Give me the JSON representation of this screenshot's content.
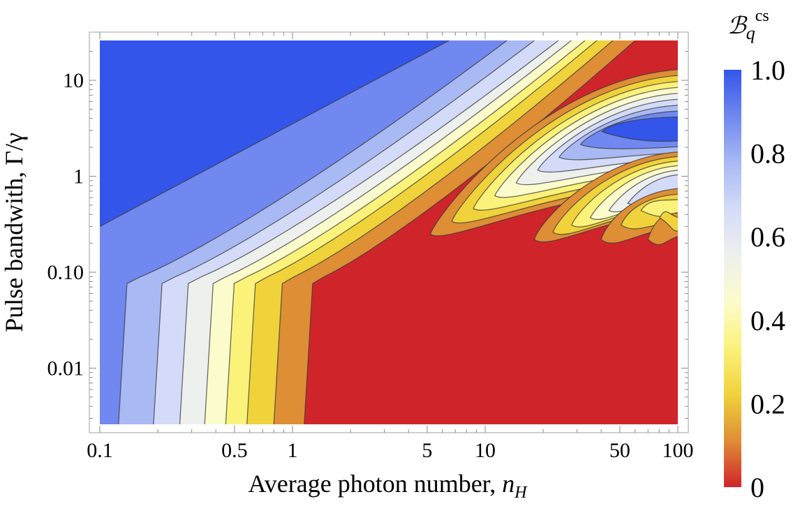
{
  "chart_data": {
    "type": "heatmap",
    "subtype": "contour",
    "title": "",
    "xlabel": "Average photon number, ",
    "xlabel_var": "n",
    "xlabel_sub": "H",
    "ylabel": "Pulse bandwith, Γ/γ",
    "x_scale": "log",
    "y_scale": "log",
    "xlim": [
      0.1,
      100
    ],
    "ylim": [
      0.0026,
      26
    ],
    "x_ticks": [
      {
        "value": 0.1,
        "label": "0.1"
      },
      {
        "value": 0.5,
        "label": "0.5"
      },
      {
        "value": 1,
        "label": "1"
      },
      {
        "value": 5,
        "label": "5"
      },
      {
        "value": 10,
        "label": "10"
      },
      {
        "value": 50,
        "label": "50"
      },
      {
        "value": 100,
        "label": "100"
      }
    ],
    "y_ticks": [
      {
        "value": 0.01,
        "label": "0.01"
      },
      {
        "value": 0.1,
        "label": "0.10"
      },
      {
        "value": 1,
        "label": "1"
      },
      {
        "value": 10,
        "label": "10"
      }
    ],
    "colorbar": {
      "label_main": "ℬ",
      "label_sub": "q",
      "label_sup": "cs",
      "range": [
        0,
        1
      ],
      "ticks": [
        {
          "value": 1.0,
          "label": "1.0"
        },
        {
          "value": 0.8,
          "label": "0.8"
        },
        {
          "value": 0.6,
          "label": "0.6"
        },
        {
          "value": 0.4,
          "label": "0.4"
        },
        {
          "value": 0.2,
          "label": "0.2"
        },
        {
          "value": 0,
          "label": "0"
        }
      ]
    },
    "contour_levels": [
      0.1,
      0.2,
      0.3,
      0.4,
      0.5,
      0.6,
      0.7,
      0.8,
      0.9
    ],
    "band_colors": [
      "#d0242b",
      "#de8e35",
      "#f0d23b",
      "#fbf27a",
      "#fcfbcc",
      "#eef0ee",
      "#d4dbf8",
      "#a8b9f4",
      "#7088ef",
      "#3355ea"
    ],
    "left_band_boundaries": [
      {
        "level": 0.9,
        "x_at_bottom": null,
        "y_at_left": 0.3,
        "x_at_top": 6.5
      },
      {
        "level": 0.8,
        "x_at_bottom": 0.125,
        "x_at_top": 13
      },
      {
        "level": 0.7,
        "x_at_bottom": 0.19,
        "x_at_top": 18
      },
      {
        "level": 0.6,
        "x_at_bottom": 0.26,
        "x_at_top": 24
      },
      {
        "level": 0.5,
        "x_at_bottom": 0.35,
        "x_at_top": 28
      },
      {
        "level": 0.4,
        "x_at_bottom": 0.45,
        "x_at_top": 33
      },
      {
        "level": 0.3,
        "x_at_bottom": 0.58,
        "x_at_top": 38
      },
      {
        "level": 0.2,
        "x_at_bottom": 0.8,
        "x_at_top": 46
      },
      {
        "level": 0.1,
        "x_at_bottom": 1.15,
        "x_at_top": 60
      }
    ],
    "lobes": [
      {
        "tip_x": 5.2,
        "tip_y": 0.25,
        "peak": 0.92
      },
      {
        "tip_x": 18,
        "tip_y": 0.22,
        "peak": 0.6
      },
      {
        "tip_x": 40,
        "tip_y": 0.22,
        "peak": 0.35
      },
      {
        "tip_x": 70,
        "tip_y": 0.22,
        "peak": 0.22
      }
    ]
  }
}
